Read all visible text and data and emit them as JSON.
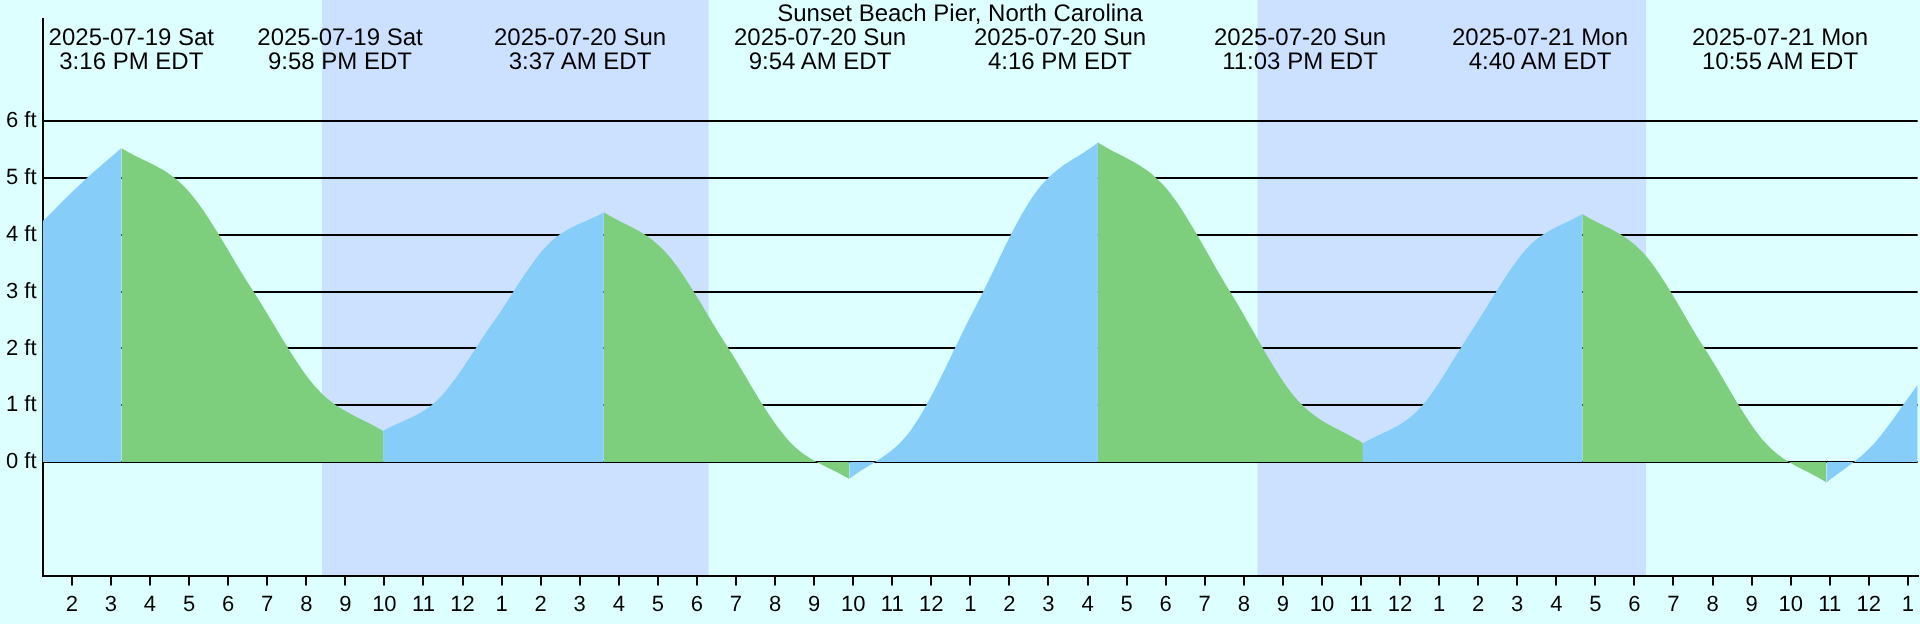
{
  "chart_data": {
    "type": "area",
    "title": "Sunset Beach Pier, North Carolina",
    "series": [
      {
        "color": "#87cdfa",
        "x": [
          "2025-07-19T13:15",
          "2025-07-19T14:18",
          "2025-07-19T15:16"
        ],
        "values": [
          4.24,
          4.95,
          5.53
        ]
      },
      {
        "color": "#7dcf7d",
        "x": [
          "2025-07-19T15:16",
          "2025-07-19T16:57",
          "2025-07-19T18:37",
          "2025-07-19T20:18",
          "2025-07-19T21:58"
        ],
        "values": [
          5.53,
          4.8,
          3.04,
          1.28,
          0.55
        ]
      },
      {
        "color": "#87cdfa",
        "x": [
          "2025-07-19T21:58",
          "2025-07-19T23:23",
          "2025-07-20T00:48",
          "2025-07-20T02:12",
          "2025-07-20T03:37"
        ],
        "values": [
          0.55,
          1.11,
          2.48,
          3.84,
          4.4
        ]
      },
      {
        "color": "#7dcf7d",
        "x": [
          "2025-07-20T03:37",
          "2025-07-20T05:11",
          "2025-07-20T06:46",
          "2025-07-20T08:20",
          "2025-07-20T09:54"
        ],
        "values": [
          4.4,
          3.71,
          2.05,
          0.39,
          -0.3
        ]
      },
      {
        "color": "#87cdfa",
        "x": [
          "2025-07-20T09:54",
          "2025-07-20T11:29",
          "2025-07-20T13:05",
          "2025-07-20T14:41",
          "2025-07-20T16:16"
        ],
        "values": [
          -0.3,
          0.57,
          2.67,
          4.76,
          5.63
        ]
      },
      {
        "color": "#7dcf7d",
        "x": [
          "2025-07-20T16:16",
          "2025-07-20T17:58",
          "2025-07-20T19:40",
          "2025-07-20T21:22",
          "2025-07-20T23:03"
        ],
        "values": [
          5.63,
          4.86,
          2.98,
          1.1,
          0.33
        ]
      },
      {
        "color": "#87cdfa",
        "x": [
          "2025-07-20T23:03",
          "2025-07-21T00:28",
          "2025-07-21T01:52",
          "2025-07-21T03:16",
          "2025-07-21T04:40"
        ],
        "values": [
          0.33,
          0.92,
          2.35,
          3.78,
          4.37
        ]
      },
      {
        "color": "#7dcf7d",
        "x": [
          "2025-07-21T04:40",
          "2025-07-21T06:14",
          "2025-07-21T07:48",
          "2025-07-21T09:22",
          "2025-07-21T10:55"
        ],
        "values": [
          4.37,
          3.68,
          2.0,
          0.33,
          -0.36
        ]
      },
      {
        "color": "#87cdfa",
        "x": [
          "2025-07-21T10:55",
          "2025-07-21T12:06",
          "2025-07-21T13:15"
        ],
        "values": [
          -0.36,
          0.3,
          1.36
        ]
      }
    ],
    "annotations": [
      "2025-07-19 Sat\n3:16 PM EDT",
      "2025-07-19 Sat\n9:58 PM EDT",
      "2025-07-20 Sun\n3:37 AM EDT",
      "2025-07-20 Sun\n9:54 AM EDT",
      "2025-07-20 Sun\n4:16 PM EDT",
      "2025-07-20 Sun\n11:03 PM EDT",
      "2025-07-21 Mon\n4:40 AM EDT",
      "2025-07-21 Mon\n10:55 AM EDT"
    ],
    "bands": [
      {
        "axis": "x",
        "from": "2025-07-19T20:24",
        "to": "2025-07-20T06:18",
        "color": "#cce0ff"
      },
      {
        "axis": "x",
        "from": "2025-07-20T20:21",
        "to": "2025-07-21T06:18",
        "color": "#cce0ff"
      }
    ],
    "xlim": [
      "2025-07-19T13:15",
      "2025-07-21T13:15"
    ],
    "xticks": [
      {
        "value": "2025-07-19T14:00",
        "label": "2"
      },
      {
        "value": "2025-07-19T15:00",
        "label": "3"
      },
      {
        "value": "2025-07-19T16:00",
        "label": "4"
      },
      {
        "value": "2025-07-19T17:00",
        "label": "5"
      },
      {
        "value": "2025-07-19T18:00",
        "label": "6"
      },
      {
        "value": "2025-07-19T19:00",
        "label": "7"
      },
      {
        "value": "2025-07-19T20:00",
        "label": "8"
      },
      {
        "value": "2025-07-19T21:00",
        "label": "9"
      },
      {
        "value": "2025-07-19T22:00",
        "label": "10"
      },
      {
        "value": "2025-07-19T23:00",
        "label": "11"
      },
      {
        "value": "2025-07-20T00:00",
        "label": "12"
      },
      {
        "value": "2025-07-20T01:00",
        "label": "1"
      },
      {
        "value": "2025-07-20T02:00",
        "label": "2"
      },
      {
        "value": "2025-07-20T03:00",
        "label": "3"
      },
      {
        "value": "2025-07-20T04:00",
        "label": "4"
      },
      {
        "value": "2025-07-20T05:00",
        "label": "5"
      },
      {
        "value": "2025-07-20T06:00",
        "label": "6"
      },
      {
        "value": "2025-07-20T07:00",
        "label": "7"
      },
      {
        "value": "2025-07-20T08:00",
        "label": "8"
      },
      {
        "value": "2025-07-20T09:00",
        "label": "9"
      },
      {
        "value": "2025-07-20T10:00",
        "label": "10"
      },
      {
        "value": "2025-07-20T11:00",
        "label": "11"
      },
      {
        "value": "2025-07-20T12:00",
        "label": "12"
      },
      {
        "value": "2025-07-20T13:00",
        "label": "1"
      },
      {
        "value": "2025-07-20T14:00",
        "label": "2"
      },
      {
        "value": "2025-07-20T15:00",
        "label": "3"
      },
      {
        "value": "2025-07-20T16:00",
        "label": "4"
      },
      {
        "value": "2025-07-20T17:00",
        "label": "5"
      },
      {
        "value": "2025-07-20T18:00",
        "label": "6"
      },
      {
        "value": "2025-07-20T19:00",
        "label": "7"
      },
      {
        "value": "2025-07-20T20:00",
        "label": "8"
      },
      {
        "value": "2025-07-20T21:00",
        "label": "9"
      },
      {
        "value": "2025-07-20T22:00",
        "label": "10"
      },
      {
        "value": "2025-07-20T23:00",
        "label": "11"
      },
      {
        "value": "2025-07-21T00:00",
        "label": "12"
      },
      {
        "value": "2025-07-21T01:00",
        "label": "1"
      },
      {
        "value": "2025-07-21T02:00",
        "label": "2"
      },
      {
        "value": "2025-07-21T03:00",
        "label": "3"
      },
      {
        "value": "2025-07-21T04:00",
        "label": "4"
      },
      {
        "value": "2025-07-21T05:00",
        "label": "5"
      },
      {
        "value": "2025-07-21T06:00",
        "label": "6"
      },
      {
        "value": "2025-07-21T07:00",
        "label": "7"
      },
      {
        "value": "2025-07-21T08:00",
        "label": "8"
      },
      {
        "value": "2025-07-21T09:00",
        "label": "9"
      },
      {
        "value": "2025-07-21T10:00",
        "label": "10"
      },
      {
        "value": "2025-07-21T11:00",
        "label": "11"
      },
      {
        "value": "2025-07-21T12:00",
        "label": "12"
      },
      {
        "value": "2025-07-21T13:00",
        "label": "1"
      }
    ],
    "ylim": [
      -2,
      7.8
    ],
    "yticks": [
      {
        "value": 0,
        "label": "0 ft"
      },
      {
        "value": 1,
        "label": "1 ft"
      },
      {
        "value": 2,
        "label": "2 ft"
      },
      {
        "value": 3,
        "label": "3 ft"
      },
      {
        "value": 4,
        "label": "4 ft"
      },
      {
        "value": 5,
        "label": "5 ft"
      },
      {
        "value": 6,
        "label": "6 ft"
      }
    ],
    "grid": "y",
    "legend": false,
    "marker": "none"
  }
}
